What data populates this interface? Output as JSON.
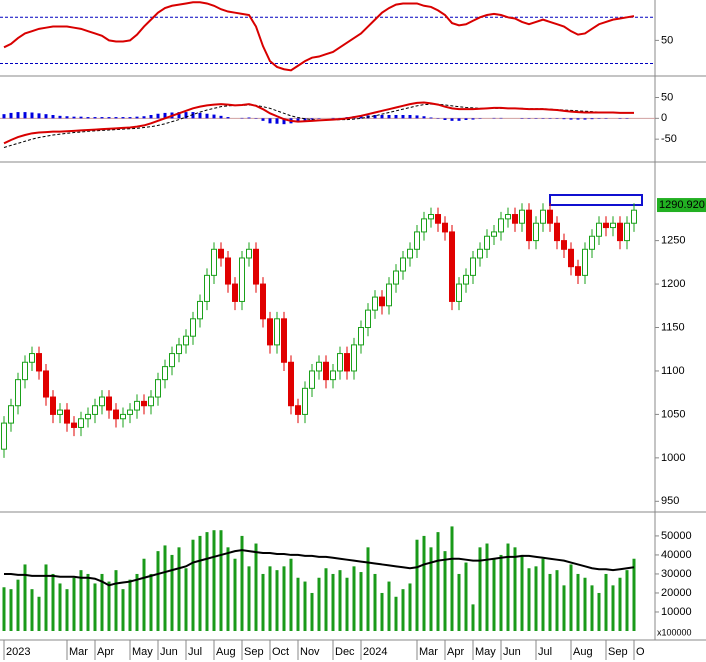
{
  "chart_data": [
    {
      "type": "line",
      "series": [
        {
          "color": "#d80000",
          "values": [
            44,
            47,
            52,
            56,
            58,
            60,
            61,
            62,
            62,
            62,
            61,
            60,
            58,
            56,
            54,
            50,
            49,
            49,
            50,
            55,
            62,
            68,
            74,
            78,
            80,
            81,
            82,
            83,
            83,
            82,
            80,
            77,
            75,
            74,
            73,
            72,
            62,
            45,
            32,
            27,
            25,
            24,
            28,
            32,
            35,
            36,
            38,
            40,
            44,
            48,
            52,
            56,
            62,
            68,
            74,
            78,
            81,
            82,
            82,
            82,
            80,
            79,
            76,
            72,
            65,
            63,
            64,
            67,
            70,
            72,
            73,
            72,
            70,
            69,
            66,
            64,
            66,
            68,
            66,
            64,
            62,
            58,
            55,
            56,
            60,
            64,
            66,
            68,
            69,
            70,
            71
          ]
        }
      ],
      "levels": [
        30,
        70
      ],
      "level_color": "#0000c0",
      "ylim": [
        20,
        85
      ],
      "yticks": [
        50
      ]
    },
    {
      "type": "line",
      "series": [
        {
          "type": "bar",
          "color": "#0000e0",
          "values": [
            10,
            13,
            15,
            15,
            14,
            12,
            10,
            8,
            6,
            5,
            4,
            4,
            3,
            3,
            3,
            3,
            3,
            3,
            3,
            4,
            5,
            8,
            11,
            13,
            14,
            15,
            15,
            15,
            13,
            11,
            9,
            6,
            3,
            0,
            1,
            2,
            -1,
            -6,
            -12,
            -13,
            -14,
            -12,
            -10,
            -6,
            -3,
            -1,
            0,
            1,
            1,
            3,
            5,
            6,
            7,
            8,
            8,
            8,
            8,
            8,
            8,
            7,
            5,
            2,
            -1,
            -4,
            -6,
            -6,
            -4,
            -3,
            -1,
            0,
            1,
            1,
            0,
            0,
            -1,
            -1,
            -1,
            -1,
            -1,
            -1,
            -2,
            -3,
            -3,
            -3,
            -2,
            -1,
            -1,
            0,
            -1,
            -1,
            0
          ]
        },
        {
          "color": "#000000",
          "dash": true,
          "values": [
            -70,
            -65,
            -60,
            -55,
            -50,
            -46,
            -43,
            -40,
            -38,
            -36,
            -34,
            -33,
            -31,
            -30,
            -29,
            -28,
            -27,
            -26,
            -25,
            -24,
            -22,
            -20,
            -17,
            -13,
            -8,
            -3,
            3,
            9,
            15,
            20,
            24,
            28,
            30,
            31,
            31,
            32,
            31,
            28,
            24,
            18,
            12,
            6,
            2,
            -1,
            -3,
            -4,
            -4,
            -4,
            -3,
            -3,
            -2,
            0,
            3,
            6,
            10,
            14,
            18,
            22,
            26,
            30,
            33,
            34,
            34,
            32,
            30,
            28,
            26,
            25,
            24,
            24,
            24,
            24,
            24,
            24,
            24,
            23,
            23,
            23,
            22,
            21,
            20,
            19,
            18,
            17,
            16,
            15,
            15,
            14,
            14,
            14,
            13
          ]
        },
        {
          "color": "#d80000",
          "values": [
            -60,
            -52,
            -45,
            -40,
            -36,
            -34,
            -33,
            -32,
            -32,
            -31,
            -30,
            -29,
            -28,
            -27,
            -26,
            -25,
            -24,
            -23,
            -22,
            -20,
            -17,
            -12,
            -6,
            0,
            6,
            12,
            18,
            24,
            28,
            31,
            33,
            34,
            33,
            31,
            32,
            34,
            30,
            22,
            12,
            5,
            -2,
            -6,
            -8,
            -7,
            -6,
            -5,
            -4,
            -3,
            -2,
            0,
            3,
            6,
            10,
            14,
            18,
            22,
            26,
            30,
            34,
            37,
            38,
            36,
            33,
            28,
            24,
            22,
            22,
            22,
            23,
            24,
            25,
            25,
            24,
            24,
            23,
            22,
            22,
            22,
            21,
            20,
            18,
            16,
            15,
            14,
            14,
            14,
            14,
            14,
            13,
            13,
            13
          ]
        }
      ],
      "ylim": [
        -100,
        92
      ],
      "yticks": [
        50,
        0,
        -50
      ]
    },
    {
      "type": "candlestick",
      "open": [
        1010,
        1040,
        1060,
        1090,
        1110,
        1120,
        1100,
        1070,
        1050,
        1055,
        1040,
        1035,
        1045,
        1050,
        1060,
        1070,
        1055,
        1045,
        1050,
        1055,
        1065,
        1060,
        1070,
        1090,
        1105,
        1120,
        1130,
        1140,
        1160,
        1180,
        1210,
        1240,
        1230,
        1200,
        1180,
        1230,
        1240,
        1200,
        1160,
        1130,
        1160,
        1110,
        1060,
        1050,
        1080,
        1100,
        1110,
        1090,
        1100,
        1120,
        1100,
        1130,
        1150,
        1170,
        1185,
        1175,
        1200,
        1215,
        1230,
        1240,
        1260,
        1275,
        1280,
        1270,
        1260,
        1180,
        1200,
        1210,
        1230,
        1240,
        1255,
        1260,
        1275,
        1280,
        1270,
        1285,
        1250,
        1270,
        1285,
        1270,
        1250,
        1240,
        1220,
        1210,
        1240,
        1255,
        1270,
        1265,
        1270,
        1250,
        1270
      ],
      "high": [
        1048,
        1068,
        1098,
        1118,
        1128,
        1128,
        1108,
        1078,
        1063,
        1063,
        1048,
        1053,
        1058,
        1068,
        1078,
        1078,
        1063,
        1058,
        1063,
        1073,
        1073,
        1078,
        1098,
        1113,
        1128,
        1138,
        1148,
        1168,
        1188,
        1218,
        1248,
        1248,
        1238,
        1208,
        1238,
        1248,
        1248,
        1208,
        1168,
        1168,
        1168,
        1118,
        1068,
        1088,
        1108,
        1118,
        1118,
        1108,
        1128,
        1128,
        1138,
        1158,
        1178,
        1193,
        1193,
        1208,
        1223,
        1238,
        1248,
        1268,
        1283,
        1288,
        1288,
        1278,
        1268,
        1208,
        1218,
        1238,
        1248,
        1263,
        1268,
        1283,
        1288,
        1288,
        1293,
        1293,
        1278,
        1293,
        1293,
        1278,
        1258,
        1248,
        1228,
        1248,
        1263,
        1278,
        1278,
        1278,
        1278,
        1278,
        1293
      ],
      "low": [
        1000,
        1030,
        1050,
        1080,
        1100,
        1090,
        1060,
        1040,
        1040,
        1030,
        1025,
        1025,
        1035,
        1040,
        1050,
        1045,
        1035,
        1035,
        1040,
        1045,
        1050,
        1050,
        1060,
        1080,
        1095,
        1110,
        1120,
        1130,
        1150,
        1170,
        1200,
        1220,
        1190,
        1170,
        1170,
        1220,
        1190,
        1150,
        1120,
        1120,
        1100,
        1050,
        1040,
        1040,
        1070,
        1090,
        1080,
        1080,
        1090,
        1090,
        1090,
        1120,
        1140,
        1160,
        1165,
        1165,
        1190,
        1205,
        1220,
        1230,
        1250,
        1265,
        1260,
        1250,
        1170,
        1170,
        1190,
        1200,
        1220,
        1230,
        1245,
        1250,
        1265,
        1260,
        1260,
        1240,
        1240,
        1260,
        1260,
        1240,
        1230,
        1210,
        1200,
        1200,
        1230,
        1245,
        1255,
        1255,
        1240,
        1240,
        1260
      ],
      "close": [
        1040,
        1060,
        1090,
        1110,
        1120,
        1100,
        1070,
        1050,
        1055,
        1040,
        1035,
        1045,
        1050,
        1060,
        1070,
        1055,
        1045,
        1050,
        1055,
        1065,
        1060,
        1070,
        1090,
        1105,
        1120,
        1130,
        1140,
        1160,
        1180,
        1210,
        1240,
        1230,
        1200,
        1180,
        1230,
        1240,
        1200,
        1160,
        1130,
        1160,
        1110,
        1060,
        1050,
        1080,
        1100,
        1110,
        1090,
        1100,
        1120,
        1100,
        1130,
        1150,
        1170,
        1185,
        1175,
        1200,
        1215,
        1230,
        1240,
        1260,
        1275,
        1280,
        1270,
        1260,
        1180,
        1200,
        1210,
        1230,
        1240,
        1255,
        1260,
        1275,
        1280,
        1270,
        1285,
        1250,
        1270,
        1285,
        1270,
        1250,
        1240,
        1220,
        1210,
        1240,
        1255,
        1270,
        1265,
        1270,
        1250,
        1270,
        1285
      ],
      "up_color": "#1aa01a",
      "down_color": "#e00000",
      "last_price": {
        "value": 1290.92,
        "label": "1290.920"
      },
      "last_price_color": "#22b022",
      "ylim": [
        940,
        1337
      ],
      "yticks": [
        950,
        1000,
        1050,
        1100,
        1150,
        1200,
        1250
      ]
    },
    {
      "type": "bar",
      "categories": [
        "2023",
        null,
        null,
        null,
        null,
        null,
        null,
        null,
        null,
        "Mar",
        null,
        null,
        null,
        "Apr",
        null,
        null,
        null,
        null,
        "May",
        null,
        null,
        null,
        "Jun",
        null,
        null,
        null,
        "Jul",
        null,
        null,
        null,
        "Aug",
        null,
        null,
        null,
        "Sep",
        null,
        null,
        null,
        "Oct",
        null,
        null,
        null,
        "Nov",
        null,
        null,
        null,
        null,
        "Dec",
        null,
        null,
        null,
        "2024",
        null,
        null,
        null,
        null,
        null,
        null,
        null,
        "Mar",
        null,
        null,
        null,
        "Apr",
        null,
        null,
        null,
        "May",
        null,
        null,
        null,
        "Jun",
        null,
        null,
        null,
        null,
        "Jul",
        null,
        null,
        null,
        null,
        "Aug",
        null,
        null,
        null,
        null,
        "Sep",
        null,
        null,
        null,
        "O"
      ],
      "values": [
        23000,
        22000,
        27000,
        35000,
        22000,
        18000,
        35000,
        30000,
        25000,
        22000,
        28000,
        32000,
        30000,
        25000,
        30000,
        26000,
        32000,
        22000,
        27000,
        30000,
        38000,
        30000,
        42000,
        45000,
        40000,
        44000,
        33000,
        48000,
        50000,
        52000,
        53000,
        53000,
        44000,
        38000,
        50000,
        34000,
        46000,
        30000,
        34000,
        32000,
        34000,
        38000,
        28000,
        26000,
        20000,
        28000,
        33000,
        30000,
        32000,
        28000,
        34000,
        31000,
        44000,
        30000,
        20000,
        26000,
        18000,
        22000,
        25000,
        48000,
        50000,
        44000,
        52000,
        42000,
        55000,
        30000,
        36000,
        14000,
        44000,
        46000,
        38000,
        40000,
        46000,
        44000,
        40000,
        33000,
        34000,
        38000,
        30000,
        32000,
        24000,
        35000,
        30000,
        28000,
        24000,
        20000,
        30000,
        24000,
        28000,
        32000,
        38000
      ],
      "color": "#1a9a1a",
      "series": [
        {
          "color": "#000000",
          "values": [
            30000,
            30000,
            29500,
            29500,
            29000,
            29000,
            29000,
            29000,
            28500,
            28500,
            28500,
            28000,
            28000,
            27500,
            26000,
            24000,
            25000,
            25500,
            26000,
            27000,
            28000,
            29000,
            30000,
            31000,
            32000,
            33000,
            34000,
            36000,
            37000,
            38000,
            39000,
            40000,
            41000,
            42000,
            42500,
            42000,
            41500,
            41000,
            41000,
            40500,
            40500,
            40000,
            40000,
            39500,
            39500,
            39000,
            39000,
            38500,
            38000,
            37500,
            37000,
            36500,
            36000,
            35500,
            35000,
            34500,
            34000,
            33500,
            33000,
            33500,
            35000,
            36000,
            37000,
            37500,
            38000,
            38000,
            37500,
            37000,
            37000,
            37500,
            38000,
            38500,
            39000,
            39000,
            39500,
            39500,
            39000,
            38500,
            38000,
            37500,
            37000,
            36000,
            35000,
            34000,
            33000,
            32500,
            32500,
            32000,
            32500,
            33000,
            33500
          ]
        }
      ],
      "unit_label": "x100000",
      "ylim": [
        0,
        61000
      ],
      "yticks": [
        10000,
        20000,
        30000,
        40000,
        50000
      ]
    }
  ]
}
